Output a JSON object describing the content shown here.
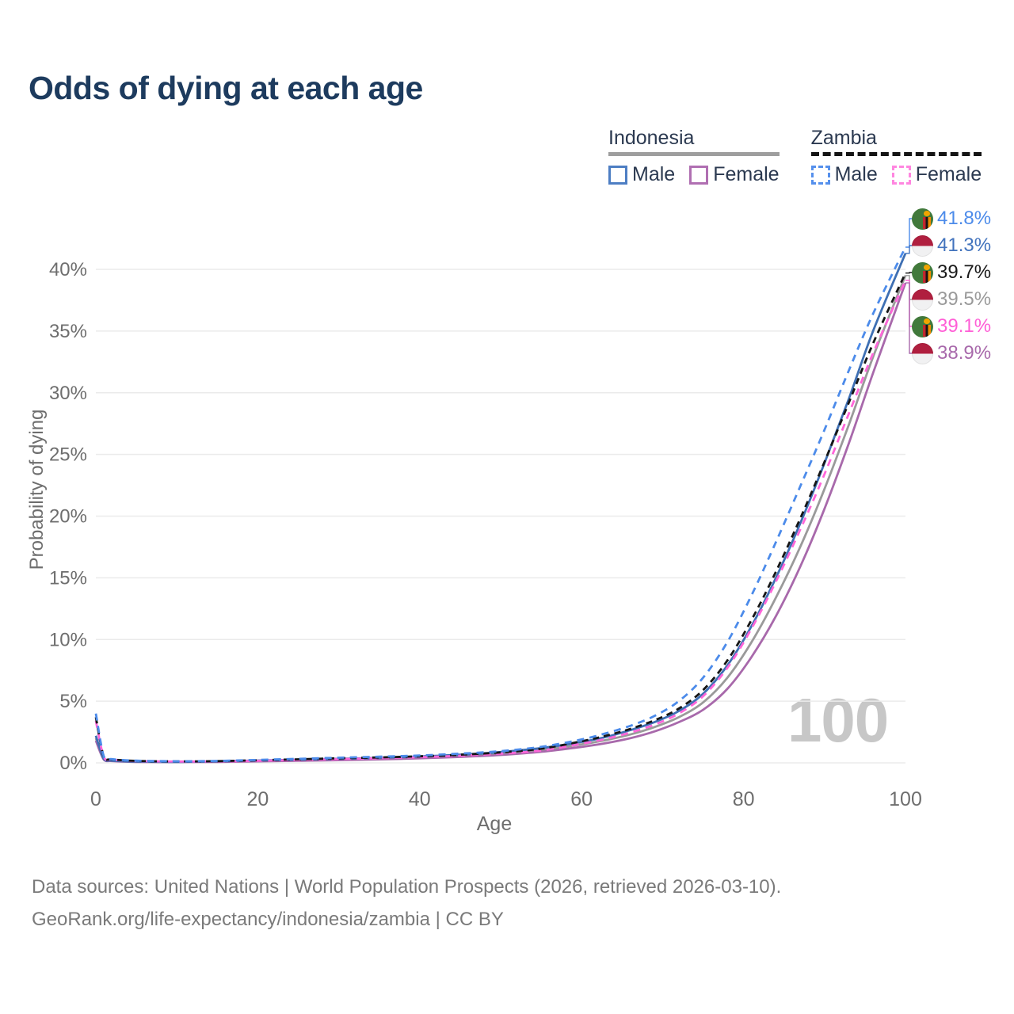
{
  "title": "Odds of dying at each age",
  "watermark": "100",
  "legend": {
    "groups": [
      {
        "name": "Indonesia",
        "style": "solid",
        "underline_color": "#9e9e9e",
        "items": [
          {
            "label": "Male",
            "color": "#4d7ec3"
          },
          {
            "label": "Female",
            "color": "#b06fb2"
          }
        ]
      },
      {
        "name": "Zambia",
        "style": "dashed",
        "underline_color": "#141414",
        "items": [
          {
            "label": "Male",
            "color": "#5590ec"
          },
          {
            "label": "Female",
            "color": "#ff86e0"
          }
        ]
      }
    ]
  },
  "axes": {
    "y_title": "Probability of dying",
    "x_title": "Age",
    "y_ticks": [
      "0%",
      "5%",
      "10%",
      "15%",
      "20%",
      "25%",
      "30%",
      "35%",
      "40%"
    ],
    "x_ticks": [
      "0",
      "20",
      "40",
      "60",
      "80",
      "100"
    ]
  },
  "end_labels": [
    {
      "value": "41.8%",
      "country": "zambia",
      "series": "Zambia — Male",
      "color": "#4c8bea"
    },
    {
      "value": "41.3%",
      "country": "indonesia",
      "series": "Indonesia — Male",
      "color": "#4273bd"
    },
    {
      "value": "39.7%",
      "country": "zambia",
      "series": "Zambia — Both sexes",
      "color": "#1a1a1a"
    },
    {
      "value": "39.5%",
      "country": "indonesia",
      "series": "Indonesia — Both sexes",
      "color": "#9a9a9a"
    },
    {
      "value": "39.1%",
      "country": "zambia",
      "series": "Zambia — Female",
      "color": "#ff5fd6"
    },
    {
      "value": "38.9%",
      "country": "indonesia",
      "series": "Indonesia — Female",
      "color": "#a869ab"
    }
  ],
  "source_line1": "Data sources: United Nations | World Population Prospects (2026, retrieved 2026-03-10).",
  "source_line2": "GeoRank.org/life-expectancy/indonesia/zambia | CC BY",
  "chart_data": {
    "type": "line",
    "title": "Odds of dying at each age",
    "xlabel": "Age",
    "ylabel": "Probability of dying",
    "xlim": [
      0,
      100
    ],
    "ylim_pct": [
      0,
      44
    ],
    "grid": true,
    "x_tick_values": [
      0,
      20,
      40,
      60,
      80,
      100
    ],
    "y_tick_values_pct": [
      0,
      5,
      10,
      15,
      20,
      25,
      30,
      35,
      40
    ],
    "ages": [
      0,
      1,
      2,
      5,
      10,
      15,
      20,
      25,
      30,
      35,
      40,
      45,
      50,
      55,
      60,
      63,
      66,
      69,
      72,
      75,
      78,
      81,
      84,
      87,
      90,
      93,
      96,
      100
    ],
    "series": [
      {
        "id": "indonesia_both",
        "name": "Indonesia — Both sexes",
        "country": "indonesia",
        "sex": "both",
        "color": "#9a9a9a",
        "dash": "",
        "width": 2.8,
        "z": 1,
        "values_pct": [
          2.0,
          0.28,
          0.17,
          0.09,
          0.07,
          0.1,
          0.16,
          0.22,
          0.28,
          0.35,
          0.45,
          0.57,
          0.76,
          1.05,
          1.5,
          1.85,
          2.3,
          2.9,
          3.7,
          4.9,
          6.9,
          9.8,
          13.4,
          17.5,
          22.2,
          27.4,
          32.9,
          39.5
        ]
      },
      {
        "id": "indonesia_female",
        "name": "Indonesia — Female",
        "country": "indonesia",
        "sex": "female",
        "color": "#a869ab",
        "dash": "",
        "width": 2.8,
        "z": 2,
        "values_pct": [
          1.8,
          0.25,
          0.15,
          0.08,
          0.06,
          0.08,
          0.12,
          0.17,
          0.22,
          0.28,
          0.37,
          0.48,
          0.64,
          0.9,
          1.3,
          1.6,
          2.0,
          2.55,
          3.3,
          4.3,
          6.0,
          8.6,
          11.9,
          15.9,
          20.6,
          25.9,
          31.6,
          38.9
        ]
      },
      {
        "id": "indonesia_male",
        "name": "Indonesia — Male",
        "country": "indonesia",
        "sex": "male",
        "color": "#3e6fb3",
        "dash": "",
        "width": 2.8,
        "z": 3,
        "values_pct": [
          2.2,
          0.3,
          0.18,
          0.1,
          0.08,
          0.12,
          0.19,
          0.26,
          0.33,
          0.41,
          0.52,
          0.66,
          0.88,
          1.2,
          1.7,
          2.1,
          2.65,
          3.3,
          4.2,
          5.6,
          7.9,
          11.1,
          15.0,
          19.4,
          24.3,
          29.5,
          35.0,
          41.3
        ]
      },
      {
        "id": "zambia_female",
        "name": "Zambia — Female",
        "country": "zambia",
        "sex": "female",
        "color": "#ff66d9",
        "dash": "9 7",
        "width": 2.8,
        "z": 4,
        "values_pct": [
          3.4,
          0.44,
          0.26,
          0.15,
          0.11,
          0.12,
          0.17,
          0.24,
          0.31,
          0.38,
          0.46,
          0.58,
          0.75,
          1.0,
          1.55,
          1.95,
          2.45,
          3.1,
          4.0,
          5.4,
          7.7,
          10.9,
          14.7,
          18.9,
          23.4,
          28.3,
          33.2,
          39.1
        ]
      },
      {
        "id": "zambia_both",
        "name": "Zambia — Both sexes",
        "country": "zambia",
        "sex": "both",
        "color": "#161616",
        "dash": "8 6",
        "width": 2.8,
        "z": 5,
        "values_pct": [
          3.7,
          0.47,
          0.28,
          0.16,
          0.12,
          0.14,
          0.21,
          0.29,
          0.37,
          0.44,
          0.53,
          0.66,
          0.85,
          1.15,
          1.75,
          2.2,
          2.75,
          3.45,
          4.4,
          5.9,
          8.3,
          11.6,
          15.5,
          19.8,
          24.4,
          29.2,
          34.0,
          39.7
        ]
      },
      {
        "id": "zambia_male",
        "name": "Zambia — Male",
        "country": "zambia",
        "sex": "male",
        "color": "#4c8bea",
        "dash": "9 7",
        "width": 2.8,
        "z": 6,
        "values_pct": [
          4.0,
          0.5,
          0.3,
          0.18,
          0.13,
          0.16,
          0.24,
          0.33,
          0.42,
          0.5,
          0.6,
          0.75,
          0.95,
          1.3,
          1.9,
          2.4,
          3.0,
          3.8,
          5.0,
          6.9,
          9.8,
          13.6,
          17.9,
          22.4,
          27.0,
          31.8,
          36.4,
          41.8
        ]
      }
    ],
    "legend_position": "top-right"
  }
}
